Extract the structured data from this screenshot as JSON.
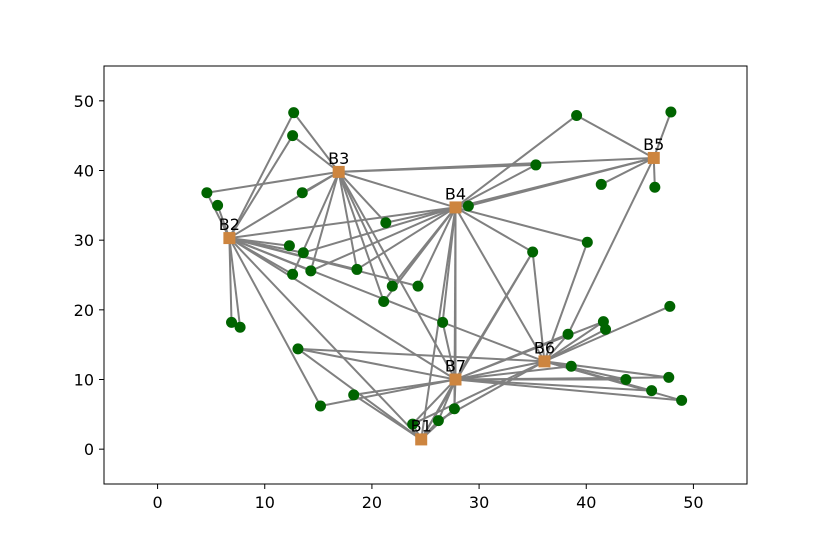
{
  "chart_data": {
    "type": "scatter",
    "title": "",
    "xlabel": "",
    "ylabel": "",
    "xlim": [
      -5,
      55
    ],
    "ylim": [
      -5,
      55
    ],
    "xticks": [
      0,
      10,
      20,
      30,
      40,
      50
    ],
    "yticks": [
      0,
      10,
      20,
      30,
      40,
      50
    ],
    "grid": false,
    "colors": {
      "point": "#006400",
      "hub": "#cd853f",
      "edge": "#808080"
    },
    "hubs": [
      {
        "label": "B1",
        "x": 24.6,
        "y": 1.4
      },
      {
        "label": "B2",
        "x": 6.7,
        "y": 30.3
      },
      {
        "label": "B3",
        "x": 16.9,
        "y": 39.8
      },
      {
        "label": "B4",
        "x": 27.8,
        "y": 34.7
      },
      {
        "label": "B5",
        "x": 46.3,
        "y": 41.8
      },
      {
        "label": "B6",
        "x": 36.1,
        "y": 12.6
      },
      {
        "label": "B7",
        "x": 27.8,
        "y": 10.0
      }
    ],
    "points": [
      {
        "x": 12.7,
        "y": 48.3
      },
      {
        "x": 12.6,
        "y": 45.0
      },
      {
        "x": 4.6,
        "y": 36.8
      },
      {
        "x": 5.6,
        "y": 35.0
      },
      {
        "x": 13.5,
        "y": 36.8
      },
      {
        "x": 21.3,
        "y": 32.5
      },
      {
        "x": 12.3,
        "y": 29.2
      },
      {
        "x": 13.6,
        "y": 28.2
      },
      {
        "x": 12.6,
        "y": 25.1
      },
      {
        "x": 14.3,
        "y": 25.6
      },
      {
        "x": 18.6,
        "y": 25.8
      },
      {
        "x": 21.9,
        "y": 23.4
      },
      {
        "x": 24.3,
        "y": 23.4
      },
      {
        "x": 21.1,
        "y": 21.2
      },
      {
        "x": 6.9,
        "y": 18.2
      },
      {
        "x": 7.7,
        "y": 17.5
      },
      {
        "x": 26.6,
        "y": 18.2
      },
      {
        "x": 13.1,
        "y": 14.4
      },
      {
        "x": 15.2,
        "y": 6.2
      },
      {
        "x": 18.3,
        "y": 7.8
      },
      {
        "x": 23.8,
        "y": 3.6
      },
      {
        "x": 26.2,
        "y": 4.1
      },
      {
        "x": 27.7,
        "y": 5.8
      },
      {
        "x": 29.0,
        "y": 34.9
      },
      {
        "x": 35.3,
        "y": 40.8
      },
      {
        "x": 39.1,
        "y": 47.9
      },
      {
        "x": 41.4,
        "y": 38.0
      },
      {
        "x": 46.4,
        "y": 37.6
      },
      {
        "x": 47.9,
        "y": 48.4
      },
      {
        "x": 35.0,
        "y": 28.3
      },
      {
        "x": 40.1,
        "y": 29.7
      },
      {
        "x": 47.8,
        "y": 20.5
      },
      {
        "x": 41.6,
        "y": 18.3
      },
      {
        "x": 41.8,
        "y": 17.2
      },
      {
        "x": 38.3,
        "y": 16.5
      },
      {
        "x": 38.6,
        "y": 11.9
      },
      {
        "x": 43.7,
        "y": 10.0
      },
      {
        "x": 47.7,
        "y": 10.3
      },
      {
        "x": 46.1,
        "y": 8.4
      },
      {
        "x": 48.9,
        "y": 7.0
      }
    ],
    "edges": [
      [
        "B2",
        0
      ],
      [
        "B2",
        1
      ],
      [
        "B2",
        2
      ],
      [
        "B2",
        3
      ],
      [
        "B2",
        6
      ],
      [
        "B2",
        7
      ],
      [
        "B2",
        8
      ],
      [
        "B2",
        9
      ],
      [
        "B2",
        14
      ],
      [
        "B2",
        15
      ],
      [
        "B2",
        18
      ],
      [
        "B2",
        10
      ],
      [
        "B2",
        12
      ],
      [
        "B2",
        16
      ],
      [
        "B3",
        0
      ],
      [
        "B3",
        1
      ],
      [
        "B3",
        2
      ],
      [
        "B3",
        4
      ],
      [
        "B3",
        5
      ],
      [
        "B3",
        8
      ],
      [
        "B3",
        9
      ],
      [
        "B3",
        10
      ],
      [
        "B3",
        11
      ],
      [
        "B3",
        13
      ],
      [
        "B3",
        24
      ],
      [
        "B4",
        5
      ],
      [
        "B4",
        7
      ],
      [
        "B4",
        9
      ],
      [
        "B4",
        10
      ],
      [
        "B4",
        11
      ],
      [
        "B4",
        12
      ],
      [
        "B4",
        13
      ],
      [
        "B4",
        23
      ],
      [
        "B4",
        24
      ],
      [
        "B4",
        25
      ],
      [
        "B4",
        29
      ],
      [
        "B4",
        30
      ],
      [
        "B4",
        22
      ],
      [
        "B4",
        16
      ],
      [
        "B5",
        23
      ],
      [
        "B5",
        25
      ],
      [
        "B5",
        26
      ],
      [
        "B5",
        27
      ],
      [
        "B5",
        28
      ],
      [
        "B5",
        34
      ],
      [
        "B6",
        16
      ],
      [
        "B6",
        29
      ],
      [
        "B6",
        30
      ],
      [
        "B6",
        31
      ],
      [
        "B6",
        32
      ],
      [
        "B6",
        33
      ],
      [
        "B6",
        34
      ],
      [
        "B6",
        35
      ],
      [
        "B6",
        36
      ],
      [
        "B6",
        37
      ],
      [
        "B6",
        38
      ],
      [
        "B6",
        39
      ],
      [
        "B6",
        20
      ],
      [
        "B6",
        21
      ],
      [
        "B6",
        17
      ],
      [
        "B7",
        17
      ],
      [
        "B7",
        18
      ],
      [
        "B7",
        19
      ],
      [
        "B7",
        20
      ],
      [
        "B7",
        21
      ],
      [
        "B7",
        22
      ],
      [
        "B7",
        29
      ],
      [
        "B7",
        32
      ],
      [
        "B7",
        34
      ],
      [
        "B7",
        35
      ],
      [
        "B7",
        36
      ],
      [
        "B7",
        37
      ],
      [
        "B7",
        38
      ],
      [
        "B7",
        39
      ],
      [
        "B7",
        16
      ],
      [
        "B1",
        17
      ],
      [
        "B1",
        19
      ],
      [
        "B1",
        20
      ],
      [
        "B1",
        21
      ],
      [
        "B1",
        22
      ],
      [
        "B1",
        29
      ],
      [
        "B1",
        "B2"
      ],
      [
        "B1",
        "B4"
      ],
      [
        "B1",
        "B7"
      ],
      [
        "B2",
        "B3"
      ],
      [
        "B2",
        "B4"
      ],
      [
        "B2",
        "B7"
      ],
      [
        "B3",
        "B4"
      ],
      [
        "B3",
        "B5"
      ],
      [
        "B3",
        "B7"
      ],
      [
        "B4",
        "B5"
      ],
      [
        "B4",
        "B7"
      ],
      [
        "B4",
        "B6"
      ],
      [
        "B6",
        "B7"
      ]
    ]
  }
}
